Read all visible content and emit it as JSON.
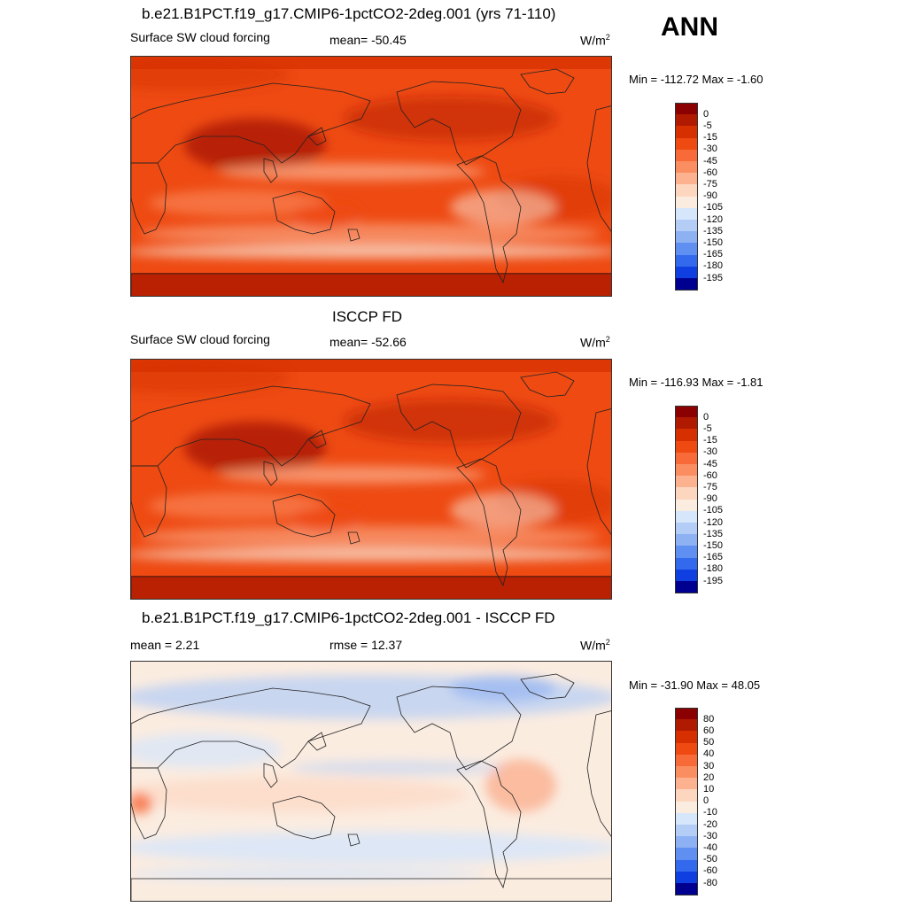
{
  "season": "ANN",
  "units_base": "W/m",
  "units_exp": "2",
  "panels": [
    {
      "title": "b.e21.B1PCT.f19_g17.CMIP6-1pctCO2-2deg.001 (yrs 71-110)",
      "left_label": "Surface SW cloud forcing",
      "center_label": "mean= -50.45",
      "minmax": "Min = -112.72 Max =  -1.60",
      "kind": "abs"
    },
    {
      "title": "ISCCP FD",
      "left_label": "Surface SW cloud forcing",
      "center_label": "mean= -52.66",
      "minmax": "Min = -116.93 Max =  -1.81",
      "kind": "abs"
    },
    {
      "title": "b.e21.B1PCT.f19_g17.CMIP6-1pctCO2-2deg.001 - ISCCP FD",
      "left_label": "mean =   2.21",
      "center_label": "rmse =  12.37",
      "minmax": "Min = -31.90 Max =  48.05",
      "kind": "diff"
    }
  ],
  "colorbars": {
    "abs": {
      "levels": [
        "0",
        "-5",
        "-15",
        "-30",
        "-45",
        "-60",
        "-75",
        "-90",
        "-105",
        "-120",
        "-135",
        "-150",
        "-165",
        "-180",
        "-195"
      ],
      "colors": [
        "#8b0000",
        "#b01a00",
        "#d62f00",
        "#ee4a12",
        "#f86a38",
        "#fb8e60",
        "#fcb18f",
        "#fdd6bf",
        "#fbece0",
        "#d6e6fb",
        "#b3cdf7",
        "#8db1f3",
        "#5f8ff0",
        "#336aed",
        "#0f3fe0",
        "#000090"
      ]
    },
    "diff": {
      "levels": [
        "80",
        "60",
        "50",
        "40",
        "30",
        "20",
        "10",
        "0",
        "-10",
        "-20",
        "-30",
        "-40",
        "-50",
        "-60",
        "-80"
      ],
      "colors": [
        "#8b0000",
        "#b01a00",
        "#d62f00",
        "#ee4a12",
        "#f86a38",
        "#fb8e60",
        "#fcb18f",
        "#fdd6bf",
        "#fbece0",
        "#d6e6fb",
        "#b3cdf7",
        "#8db1f3",
        "#5f8ff0",
        "#336aed",
        "#0f3fe0",
        "#000090"
      ]
    }
  },
  "chart_data": [
    {
      "type": "heatmap",
      "title": "b.e21.B1PCT.f19_g17.CMIP6-1pctCO2-2deg.001 (yrs 71-110)",
      "variable": "Surface SW cloud forcing",
      "units": "W/m2",
      "season": "ANN",
      "mean": -50.45,
      "min": -112.72,
      "max": -1.6,
      "contour_levels": [
        0,
        -5,
        -15,
        -30,
        -45,
        -60,
        -75,
        -90,
        -105,
        -120,
        -135,
        -150,
        -165,
        -180,
        -195
      ]
    },
    {
      "type": "heatmap",
      "title": "ISCCP FD",
      "variable": "Surface SW cloud forcing",
      "units": "W/m2",
      "season": "ANN",
      "mean": -52.66,
      "min": -116.93,
      "max": -1.81,
      "contour_levels": [
        0,
        -5,
        -15,
        -30,
        -45,
        -60,
        -75,
        -90,
        -105,
        -120,
        -135,
        -150,
        -165,
        -180,
        -195
      ]
    },
    {
      "type": "heatmap",
      "title": "b.e21.B1PCT.f19_g17.CMIP6-1pctCO2-2deg.001 - ISCCP FD",
      "units": "W/m2",
      "season": "ANN",
      "mean": 2.21,
      "rmse": 12.37,
      "min": -31.9,
      "max": 48.05,
      "contour_levels": [
        80,
        60,
        50,
        40,
        30,
        20,
        10,
        0,
        -10,
        -20,
        -30,
        -40,
        -50,
        -60,
        -80
      ]
    }
  ]
}
